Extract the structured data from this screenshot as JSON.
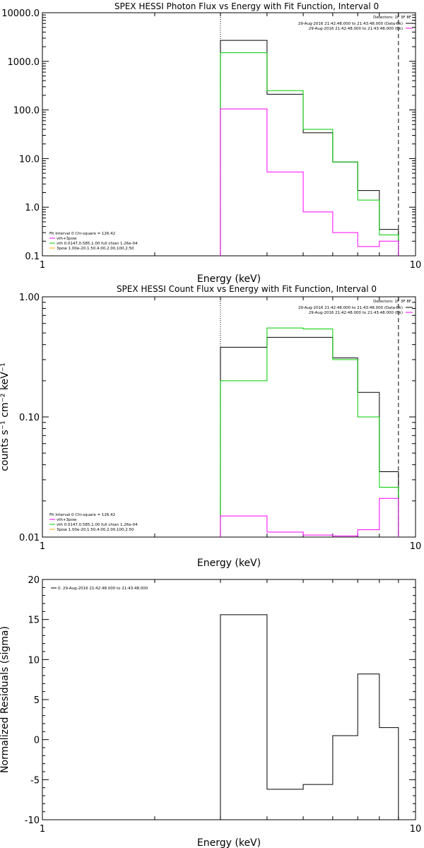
{
  "chart_data": [
    {
      "type": "line",
      "title": "SPEX HESSI Photon Flux vs Energy with Fit Function, Interval 0",
      "xlabel": "Energy (keV)",
      "ylabel": "",
      "xscale": "log",
      "yscale": "log",
      "xlim": [
        1,
        10
      ],
      "ylim": [
        0.1,
        10000
      ],
      "x_tick_labels": [
        "1",
        "10"
      ],
      "y_tick_labels": [
        "0.1",
        "1.0",
        "10.0",
        "100.0",
        "1000.0",
        "10000.0"
      ],
      "y_ticks": [
        0.1,
        1,
        10,
        100,
        1000,
        10000
      ],
      "detectors_text": "Detectors: 1F 3F 8F",
      "legend_topright": [
        {
          "text": "29-Aug-2016 21:42:48.000 to 21:43:48.000 (Data-Bk)",
          "color": "#000000"
        },
        {
          "text": "29-Aug-2016 21:42:48.000 to 21:43:48.000 (Bk)",
          "color": "#ff00ff"
        }
      ],
      "fit_info": "Fit Interval 0   Chi-square = 126.42",
      "legend_bottomleft": [
        {
          "text": "vth+3pow",
          "color": "#ff00ff"
        },
        {
          "text": "vth 0.0147,0.585,1.00  full chian 1.26e-04",
          "color": "#00cc00"
        },
        {
          "text": "3pow 1.00e-20,1.50,4.00,2.00,100,2.50",
          "color": "#ffaa00"
        }
      ],
      "vlines": [
        {
          "x": 3.0,
          "style": "dotted"
        },
        {
          "x": 9.0,
          "style": "dashed"
        }
      ],
      "bin_edges": [
        3.0,
        4.0,
        5.0,
        6.0,
        7.0,
        8.0,
        9.0
      ],
      "series": [
        {
          "name": "29-Aug-2016 21:42:48.000 to 21:43:48.000 (Data-Bk)",
          "color": "#000000",
          "values": [
            2700,
            210,
            34,
            8.5,
            2.2,
            0.35
          ]
        },
        {
          "name": "vth 0.0147,0.585,1.00  full chian 1.26e-04",
          "color": "#00cc00",
          "values": [
            1500,
            250,
            40,
            8.5,
            1.4,
            0.27
          ]
        },
        {
          "name": "29-Aug-2016 21:42:48.000 to 21:43:48.000 (Bk)",
          "color": "#ff00ff",
          "values": [
            105,
            5.3,
            0.8,
            0.3,
            0.155,
            0.2
          ]
        }
      ]
    },
    {
      "type": "line",
      "title": "SPEX HESSI Count Flux vs Energy with Fit Function, Interval 0",
      "xlabel": "Energy (keV)",
      "ylabel": "counts s⁻¹ cm⁻² keV⁻¹",
      "xscale": "log",
      "yscale": "log",
      "xlim": [
        1,
        10
      ],
      "ylim": [
        0.01,
        1.0
      ],
      "x_tick_labels": [
        "1",
        "10"
      ],
      "y_tick_labels": [
        "0.01",
        "0.10",
        "1.00"
      ],
      "y_ticks": [
        0.01,
        0.1,
        1.0
      ],
      "detectors_text": "Detectors: 1F 3F 8F",
      "legend_topright": [
        {
          "text": "29-Aug-2016 21:42:48.000 to 21:43:48.000 (Data-Bk)",
          "color": "#000000"
        },
        {
          "text": "29-Aug-2016 21:42:48.000 to 21:43:48.000 (Bk)",
          "color": "#ff00ff"
        }
      ],
      "fit_info": "Fit Interval 0   Chi-square = 126.42",
      "legend_bottomleft": [
        {
          "text": "vth+3pow",
          "color": "#ff00ff"
        },
        {
          "text": "vth 0.0147,0.585,1.00  full chian 1.26e-04",
          "color": "#00cc00"
        },
        {
          "text": "3pow 1.00e-20,1.50,4.00,2.00,100,2.50",
          "color": "#ffaa00"
        }
      ],
      "vlines": [
        {
          "x": 3.0,
          "style": "dotted"
        },
        {
          "x": 9.0,
          "style": "dashed"
        }
      ],
      "bin_edges": [
        3.0,
        4.0,
        5.0,
        6.0,
        7.0,
        8.0,
        9.0
      ],
      "series": [
        {
          "name": "29-Aug-2016 21:42:48.000 to 21:43:48.000 (Data-Bk)",
          "color": "#000000",
          "values": [
            0.38,
            0.46,
            0.46,
            0.31,
            0.16,
            0.035
          ]
        },
        {
          "name": "vth 0.0147,0.585,1.00  full chian 1.26e-04",
          "color": "#00cc00",
          "values": [
            0.2,
            0.55,
            0.54,
            0.3,
            0.1,
            0.026
          ]
        },
        {
          "name": "29-Aug-2016 21:42:48.000 to 21:43:48.000 (Bk)",
          "color": "#ff00ff",
          "values": [
            0.015,
            0.011,
            0.0104,
            0.0102,
            0.0115,
            0.021
          ]
        }
      ]
    },
    {
      "type": "line",
      "title": "",
      "xlabel": "Energy (keV)",
      "ylabel": "Normalized Residuals (sigma)",
      "xscale": "log",
      "yscale": "linear",
      "xlim": [
        1,
        10
      ],
      "ylim": [
        -10,
        20
      ],
      "x_tick_labels": [
        "1",
        "10"
      ],
      "y_tick_labels": [
        "-10",
        "-5",
        "0",
        "5",
        "10",
        "15",
        "20"
      ],
      "y_ticks": [
        -10,
        -5,
        0,
        5,
        10,
        15,
        20
      ],
      "legend_topleft": [
        {
          "text": "0. 29-Aug-2016 21:42:48.000 to 21:43:48.000",
          "color": "#000000"
        }
      ],
      "bin_edges": [
        3.0,
        4.0,
        5.0,
        6.0,
        7.0,
        8.0,
        9.0
      ],
      "series": [
        {
          "name": "0. 29-Aug-2016 21:42:48.000 to 21:43:48.000",
          "color": "#000000",
          "values": [
            15.6,
            -6.2,
            -5.6,
            0.5,
            8.2,
            1.5
          ]
        }
      ]
    }
  ]
}
